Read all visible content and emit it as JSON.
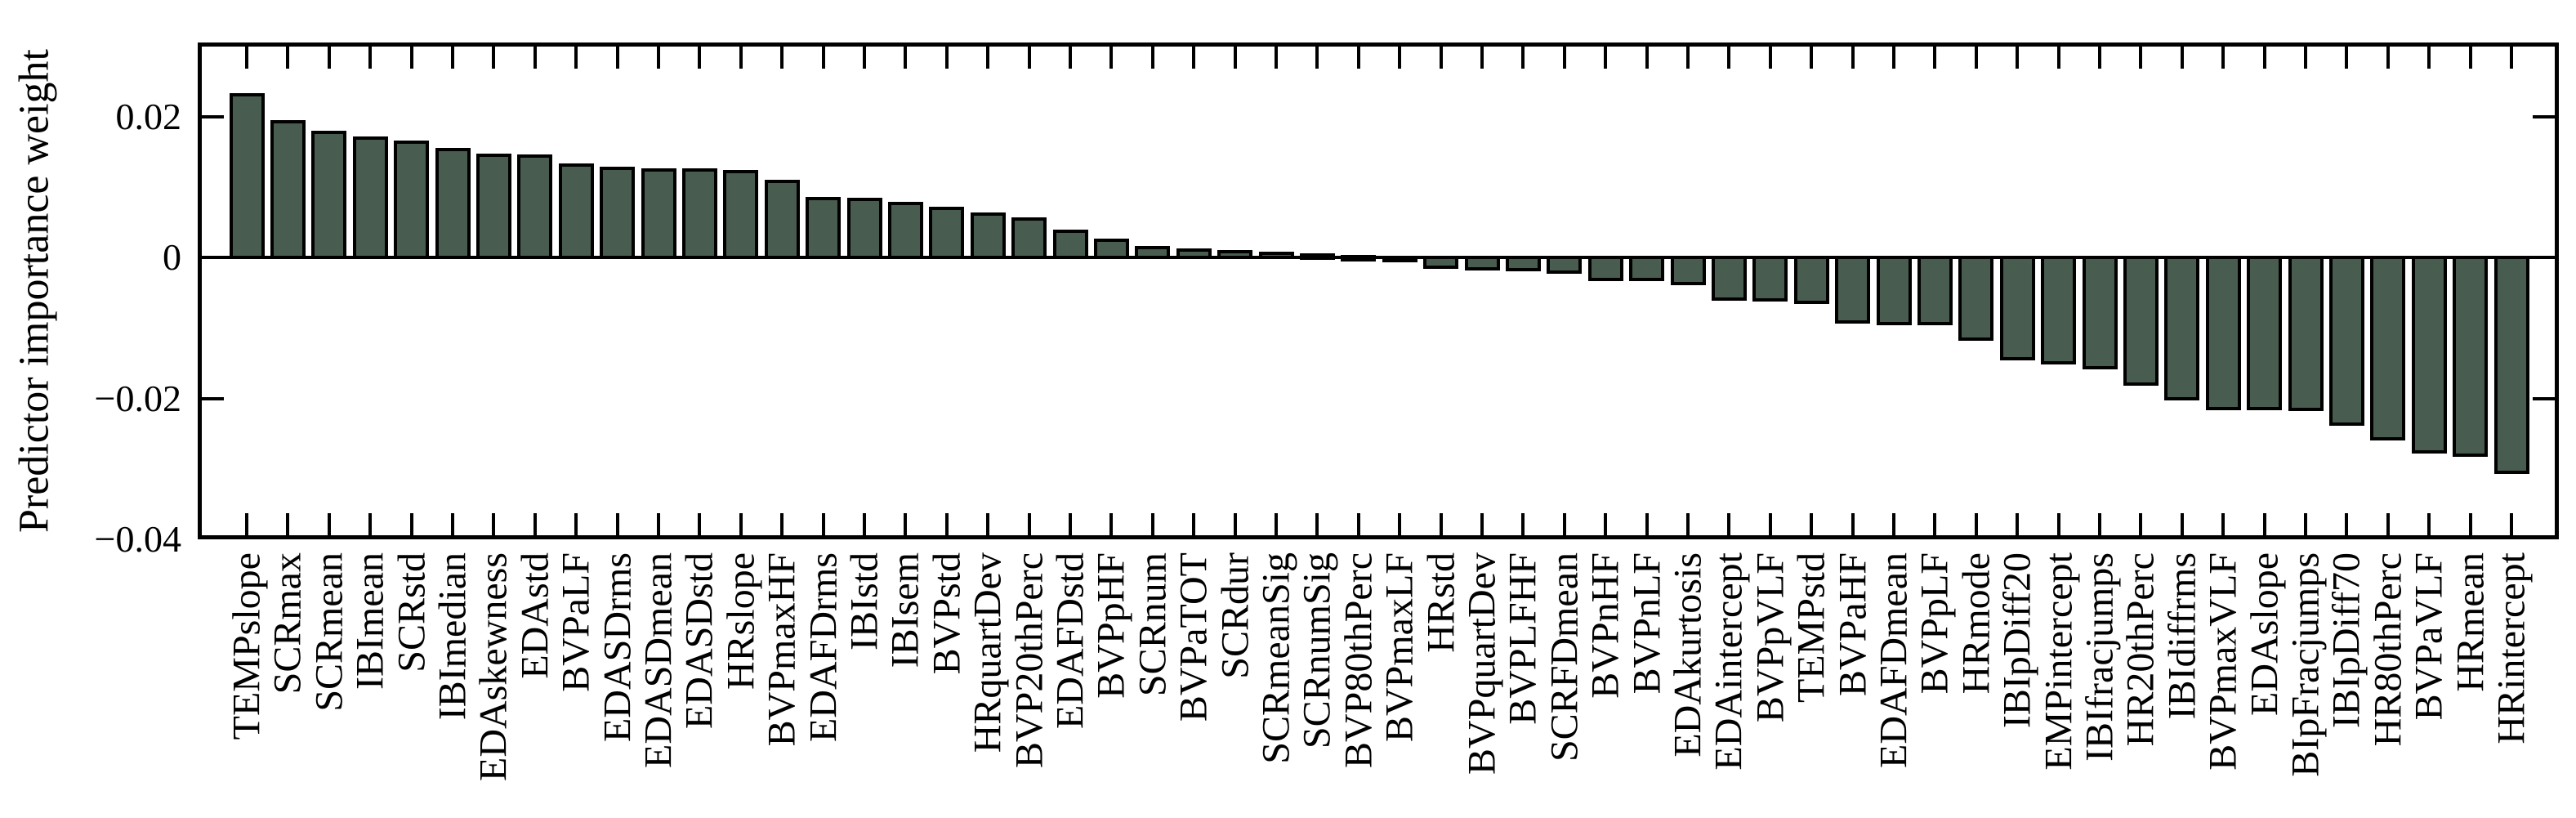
{
  "figure": {
    "background": "#ffffff",
    "axis_color": "#000000"
  },
  "chart_data": {
    "type": "bar",
    "title": "",
    "xlabel": "",
    "ylabel": "Predictor importance weight",
    "ylim": [
      -0.04,
      0.0305
    ],
    "grid": false,
    "legend": null,
    "x_tick_rotation": 90,
    "bar_color": "#485c50",
    "bar_edge_color": "#000000",
    "yticks": [
      0.02,
      0,
      -0.02,
      -0.04
    ],
    "ytick_labels": [
      "0.02",
      "0",
      "−0.02",
      "−0.04"
    ],
    "categories": [
      "TEMPslope",
      "SCRmax",
      "SCRmean",
      "IBImean",
      "SCRstd",
      "IBImedian",
      "EDAskewness",
      "EDAstd",
      "BVPaLF",
      "EDASDrms",
      "EDASDmean",
      "EDASDstd",
      "HRslope",
      "BVPmaxHF",
      "EDAFDrms",
      "IBIstd",
      "IBIsem",
      "BVPstd",
      "HRquartDev",
      "BVP20thPerc",
      "EDAFDstd",
      "BVPpHF",
      "SCRnum",
      "BVPaTOT",
      "SCRdur",
      "SCRmeanSig",
      "SCRnumSig",
      "BVP80thPerc",
      "BVPmaxLF",
      "HRstd",
      "BVPquartDev",
      "BVPLFHF",
      "SCRFDmean",
      "BVPnHF",
      "BVPnLF",
      "EDAkurtosis",
      "EDAintercept",
      "BVPpVLF",
      "TEMPstd",
      "BVPaHF",
      "EDAFDmean",
      "BVPpLF",
      "HRmode",
      "IBIpDiff20",
      "EMPintercept",
      "IBIfracjumps",
      "HR20thPerc",
      "IBIdiffrms",
      "BVPmaxVLF",
      "EDAslope",
      "BIpFracjumps",
      "IBIpDiff70",
      "HR80thPerc",
      "BVPaVLF",
      "HRmean",
      "HRintercept"
    ],
    "values": [
      0.0231,
      0.0193,
      0.0177,
      0.0169,
      0.0164,
      0.0153,
      0.0145,
      0.0144,
      0.0131,
      0.0126,
      0.0124,
      0.0124,
      0.0122,
      0.0108,
      0.0084,
      0.0082,
      0.0077,
      0.007,
      0.0061,
      0.0054,
      0.0037,
      0.0024,
      0.0014,
      0.001,
      0.0008,
      0.0006,
      0.0004,
      0.0001,
      -0.0002,
      -0.0014,
      -0.0016,
      -0.0017,
      -0.0021,
      -0.0031,
      -0.0031,
      -0.0037,
      -0.0059,
      -0.006,
      -0.0064,
      -0.0092,
      -0.0094,
      -0.0094,
      -0.0116,
      -0.0144,
      -0.0149,
      -0.0157,
      -0.018,
      -0.02,
      -0.0214,
      -0.0214,
      -0.0216,
      -0.0236,
      -0.0257,
      -0.0276,
      -0.0281,
      -0.0305
    ]
  }
}
